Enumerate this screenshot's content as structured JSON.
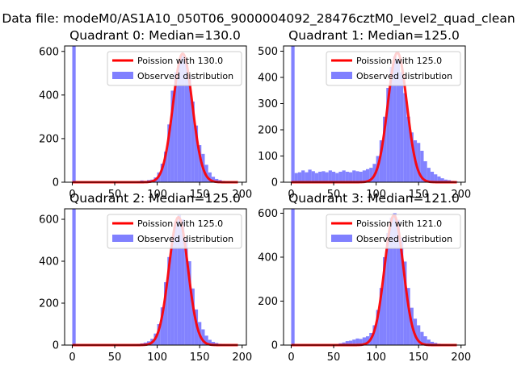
{
  "figure": {
    "suptitle": "Data file: modeM0/AS1A10_050T06_9000004092_28476cztM0_level2_quad_clean"
  },
  "chart_data": [
    {
      "type": "bar",
      "title": "Quadrant 0: Median=130.0",
      "xlim": [
        -9,
        205
      ],
      "ylim": [
        0,
        625
      ],
      "xticks": [
        0,
        50,
        100,
        150,
        200
      ],
      "yticks": [
        0,
        200,
        400,
        600
      ],
      "legend": {
        "position": "top-right",
        "entries": [
          "Poission with 130.0",
          "Observed distribution"
        ]
      },
      "fit_curve": {
        "name": "Poission with 130.0",
        "mean": 130.0,
        "peak": 590,
        "color": "#ff0000"
      },
      "histogram": {
        "name": "Observed distribution",
        "color": "#8080ff",
        "bin_width": 4,
        "bins_x": [
          0,
          76,
          80,
          84,
          88,
          92,
          96,
          100,
          104,
          108,
          112,
          116,
          120,
          124,
          128,
          132,
          136,
          140,
          144,
          148,
          152,
          156,
          160,
          164,
          168,
          172,
          176,
          180,
          184,
          188
        ],
        "counts": [
          625,
          5,
          8,
          6,
          10,
          12,
          22,
          45,
          85,
          140,
          265,
          420,
          505,
          560,
          580,
          555,
          490,
          370,
          260,
          170,
          130,
          80,
          45,
          25,
          15,
          10,
          6,
          4,
          3,
          2
        ]
      }
    },
    {
      "type": "bar",
      "title": "Quadrant 1: Median=125.0",
      "xlim": [
        -9,
        205
      ],
      "ylim": [
        0,
        520
      ],
      "xticks": [
        0,
        50,
        100,
        150,
        200
      ],
      "yticks": [
        0,
        100,
        200,
        300,
        400,
        500
      ],
      "legend": {
        "position": "top-right",
        "entries": [
          "Poission with 125.0",
          "Observed distribution"
        ]
      },
      "fit_curve": {
        "name": "Poission with 125.0",
        "mean": 125.0,
        "peak": 495,
        "color": "#ff0000"
      },
      "histogram": {
        "name": "Observed distribution",
        "color": "#8080ff",
        "bin_width": 4,
        "bins_x": [
          0,
          4,
          8,
          12,
          16,
          20,
          24,
          28,
          32,
          36,
          40,
          44,
          48,
          52,
          56,
          60,
          64,
          68,
          72,
          76,
          80,
          84,
          88,
          92,
          96,
          100,
          104,
          108,
          112,
          116,
          120,
          124,
          128,
          132,
          136,
          140,
          144,
          148,
          152,
          156,
          160,
          164,
          168,
          172,
          176,
          180,
          184,
          188,
          192
        ],
        "counts": [
          520,
          35,
          38,
          45,
          38,
          48,
          42,
          35,
          40,
          42,
          38,
          45,
          40,
          35,
          40,
          45,
          40,
          38,
          45,
          42,
          40,
          45,
          50,
          55,
          70,
          100,
          160,
          250,
          360,
          440,
          480,
          470,
          420,
          340,
          250,
          190,
          160,
          150,
          120,
          80,
          55,
          40,
          30,
          22,
          15,
          10,
          8,
          5,
          3
        ]
      }
    },
    {
      "type": "bar",
      "title": "Quadrant 2: Median=125.0",
      "xlim": [
        -9,
        205
      ],
      "ylim": [
        0,
        650
      ],
      "xticks": [
        0,
        50,
        100,
        150,
        200
      ],
      "yticks": [
        0,
        200,
        400,
        600
      ],
      "legend": {
        "position": "top-right",
        "entries": [
          "Poission with 125.0",
          "Observed distribution"
        ]
      },
      "fit_curve": {
        "name": "Poission with 125.0",
        "mean": 125.0,
        "peak": 610,
        "color": "#ff0000"
      },
      "histogram": {
        "name": "Observed distribution",
        "color": "#8080ff",
        "bin_width": 4,
        "bins_x": [
          0,
          72,
          76,
          80,
          84,
          88,
          92,
          96,
          100,
          104,
          108,
          112,
          116,
          120,
          124,
          128,
          132,
          136,
          140,
          144,
          148,
          152,
          156,
          160,
          164,
          168,
          172,
          176,
          180,
          184
        ],
        "counts": [
          650,
          3,
          5,
          8,
          12,
          18,
          30,
          55,
          100,
          180,
          300,
          420,
          520,
          590,
          620,
          600,
          510,
          400,
          270,
          170,
          110,
          75,
          45,
          25,
          15,
          10,
          6,
          4,
          3,
          2
        ]
      }
    },
    {
      "type": "bar",
      "title": "Quadrant 3: Median=121.0",
      "xlim": [
        -9,
        205
      ],
      "ylim": [
        0,
        620
      ],
      "xticks": [
        0,
        50,
        100,
        150,
        200
      ],
      "yticks": [
        0,
        200,
        400,
        600
      ],
      "legend": {
        "position": "top-right",
        "entries": [
          "Poission with 121.0",
          "Observed distribution"
        ]
      },
      "fit_curve": {
        "name": "Poission with 121.0",
        "mean": 121.0,
        "peak": 590,
        "color": "#ff0000"
      },
      "histogram": {
        "name": "Observed distribution",
        "color": "#8080ff",
        "bin_width": 4,
        "bins_x": [
          0,
          56,
          60,
          64,
          68,
          72,
          76,
          80,
          84,
          88,
          92,
          96,
          100,
          104,
          108,
          112,
          116,
          120,
          124,
          128,
          132,
          136,
          140,
          144,
          148,
          152,
          156,
          160,
          164,
          168,
          172,
          176,
          180
        ],
        "counts": [
          620,
          8,
          12,
          18,
          20,
          25,
          30,
          28,
          35,
          40,
          55,
          90,
          160,
          260,
          400,
          510,
          580,
          600,
          570,
          490,
          380,
          260,
          170,
          120,
          90,
          60,
          40,
          25,
          15,
          10,
          6,
          4,
          3
        ]
      }
    }
  ]
}
